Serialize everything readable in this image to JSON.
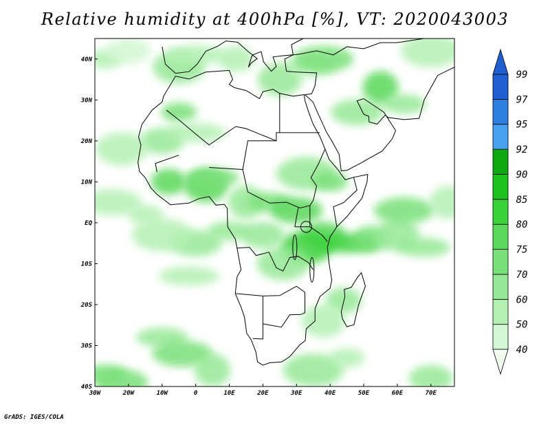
{
  "title": "Relative humidity at 400hPa [%], VT: 2020043003",
  "credit": "GrADS: IGES/COLA",
  "map": {
    "lon_range": [
      -30,
      77
    ],
    "lat_range": [
      -40,
      45
    ],
    "lon_ticks": [
      "30W",
      "20W",
      "10W",
      "0",
      "10E",
      "20E",
      "30E",
      "40E",
      "50E",
      "60E",
      "70E"
    ],
    "lat_ticks": [
      "40N",
      "30N",
      "20N",
      "10N",
      "EQ",
      "10S",
      "20S",
      "30S",
      "40S"
    ]
  },
  "colorbar": {
    "labels": [
      "40",
      "50",
      "60",
      "70",
      "75",
      "80",
      "85",
      "90",
      "92",
      "95",
      "97",
      "99"
    ],
    "colors": [
      "#f0fff0",
      "#d2f7d2",
      "#b4f0b4",
      "#96e896",
      "#78e078",
      "#5ad85a",
      "#3cd23c",
      "#1ec31e",
      "#10a810",
      "#4aa0f0",
      "#2f7fe0",
      "#1f5fcf"
    ]
  },
  "humidity_cells": [
    {
      "lon": -27,
      "lat": 40,
      "level": 1
    },
    {
      "lon": -20,
      "lat": 42,
      "level": 0
    },
    {
      "lon": -5,
      "lat": 38,
      "level": 2
    },
    {
      "lon": 0,
      "lat": 41,
      "level": 1
    },
    {
      "lon": 12,
      "lat": 40,
      "level": 1
    },
    {
      "lon": 25,
      "lat": 35,
      "level": 2
    },
    {
      "lon": 34,
      "lat": 38,
      "level": 1
    },
    {
      "lon": 38,
      "lat": 40,
      "level": 3
    },
    {
      "lon": 55,
      "lat": 33,
      "level": 4
    },
    {
      "lon": 62,
      "lat": 29,
      "level": 2
    },
    {
      "lon": 48,
      "lat": 27,
      "level": 2
    },
    {
      "lon": 70,
      "lat": 42,
      "level": 1
    },
    {
      "lon": -5,
      "lat": 27,
      "level": 3
    },
    {
      "lon": -10,
      "lat": 20,
      "level": 2
    },
    {
      "lon": -22,
      "lat": 18,
      "level": 1
    },
    {
      "lon": 0,
      "lat": 22,
      "level": 1
    },
    {
      "lon": -8,
      "lat": 10,
      "level": 4
    },
    {
      "lon": 3,
      "lat": 9,
      "level": 4
    },
    {
      "lon": 5,
      "lat": 11,
      "level": 3
    },
    {
      "lon": -25,
      "lat": 5,
      "level": 1
    },
    {
      "lon": 15,
      "lat": 5,
      "level": 2
    },
    {
      "lon": 22,
      "lat": 5,
      "level": 3
    },
    {
      "lon": 30,
      "lat": 3,
      "level": 4
    },
    {
      "lon": 33,
      "lat": 12,
      "level": 2
    },
    {
      "lon": 40,
      "lat": 10,
      "level": 3
    },
    {
      "lon": 38,
      "lat": -3,
      "level": 4
    },
    {
      "lon": 33,
      "lat": -6,
      "level": 5
    },
    {
      "lon": 45,
      "lat": -5,
      "level": 5
    },
    {
      "lon": 52,
      "lat": -4,
      "level": 3
    },
    {
      "lon": 60,
      "lat": -3,
      "level": 2
    },
    {
      "lon": 68,
      "lat": -6,
      "level": 2
    },
    {
      "lon": 62,
      "lat": 3,
      "level": 3
    },
    {
      "lon": 75,
      "lat": 5,
      "level": 1
    },
    {
      "lon": 10,
      "lat": -2,
      "level": 2
    },
    {
      "lon": 0,
      "lat": -5,
      "level": 2
    },
    {
      "lon": -10,
      "lat": -3,
      "level": 1
    },
    {
      "lon": -15,
      "lat": 2,
      "level": 1
    },
    {
      "lon": 20,
      "lat": -3,
      "level": 2
    },
    {
      "lon": 26,
      "lat": -10,
      "level": 2
    },
    {
      "lon": -2,
      "lat": -13,
      "level": 1
    },
    {
      "lon": 44,
      "lat": -19,
      "level": 2
    },
    {
      "lon": 38,
      "lat": -24,
      "level": 1
    },
    {
      "lon": -10,
      "lat": -28,
      "level": 2
    },
    {
      "lon": -4,
      "lat": -32,
      "level": 3
    },
    {
      "lon": 5,
      "lat": -36,
      "level": 2
    },
    {
      "lon": -27,
      "lat": -37,
      "level": 3
    },
    {
      "lon": -22,
      "lat": -39,
      "level": 3
    },
    {
      "lon": 35,
      "lat": -36,
      "level": 2
    },
    {
      "lon": 45,
      "lat": -33,
      "level": 1
    },
    {
      "lon": 70,
      "lat": -38,
      "level": 2
    }
  ]
}
